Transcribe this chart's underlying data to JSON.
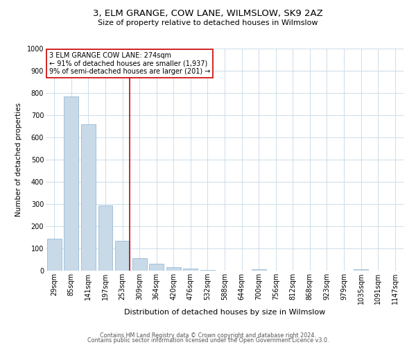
{
  "title": "3, ELM GRANGE, COW LANE, WILMSLOW, SK9 2AZ",
  "subtitle": "Size of property relative to detached houses in Wilmslow",
  "xlabel": "Distribution of detached houses by size in Wilmslow",
  "ylabel": "Number of detached properties",
  "bar_labels": [
    "29sqm",
    "85sqm",
    "141sqm",
    "197sqm",
    "253sqm",
    "309sqm",
    "364sqm",
    "420sqm",
    "476sqm",
    "532sqm",
    "588sqm",
    "644sqm",
    "700sqm",
    "756sqm",
    "812sqm",
    "868sqm",
    "923sqm",
    "979sqm",
    "1035sqm",
    "1091sqm",
    "1147sqm"
  ],
  "bar_heights": [
    143,
    783,
    660,
    295,
    135,
    57,
    32,
    16,
    8,
    2,
    0,
    0,
    5,
    0,
    0,
    0,
    0,
    0,
    5,
    0,
    0
  ],
  "bar_color": "#c8d9e8",
  "bar_edge_color": "#9bbbd4",
  "highlight_line_color": "#cc0000",
  "annotation_text": "3 ELM GRANGE COW LANE: 274sqm\n← 91% of detached houses are smaller (1,937)\n9% of semi-detached houses are larger (201) →",
  "annotation_box_color": "#ffffff",
  "annotation_box_edge": "#cc0000",
  "ylim": [
    0,
    1000
  ],
  "yticks": [
    0,
    100,
    200,
    300,
    400,
    500,
    600,
    700,
    800,
    900,
    1000
  ],
  "footer_line1": "Contains HM Land Registry data © Crown copyright and database right 2024.",
  "footer_line2": "Contains public sector information licensed under the Open Government Licence v3.0.",
  "background_color": "#ffffff",
  "grid_color": "#ccdce8",
  "title_fontsize": 9.5,
  "subtitle_fontsize": 8,
  "xlabel_fontsize": 8,
  "ylabel_fontsize": 7.5,
  "tick_fontsize": 7,
  "annotation_fontsize": 7,
  "footer_fontsize": 5.8
}
